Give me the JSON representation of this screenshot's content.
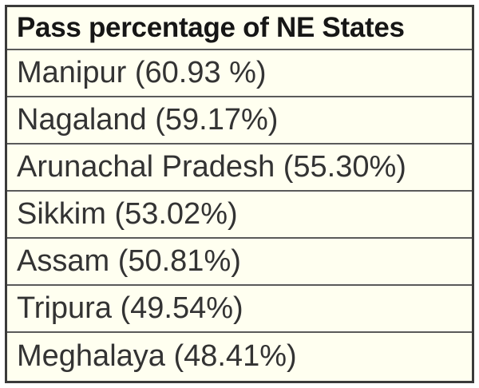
{
  "chart_data": {
    "type": "table",
    "title": "Pass percentage of NE States",
    "rows": [
      {
        "label": "Manipur (60.93 %)",
        "state": "Manipur",
        "value": 60.93
      },
      {
        "label": "Nagaland (59.17%)",
        "state": "Nagaland",
        "value": 59.17
      },
      {
        "label": "Arunachal Pradesh (55.30%)",
        "state": "Arunachal Pradesh",
        "value": 55.3
      },
      {
        "label": "Sikkim (53.02%)",
        "state": "Sikkim",
        "value": 53.02
      },
      {
        "label": "Assam (50.81%)",
        "state": "Assam",
        "value": 50.81
      },
      {
        "label": "Tripura (49.54%)",
        "state": "Tripura",
        "value": 49.54
      },
      {
        "label": "Meghalaya (48.41%)",
        "state": "Meghalaya",
        "value": 48.41
      }
    ]
  }
}
